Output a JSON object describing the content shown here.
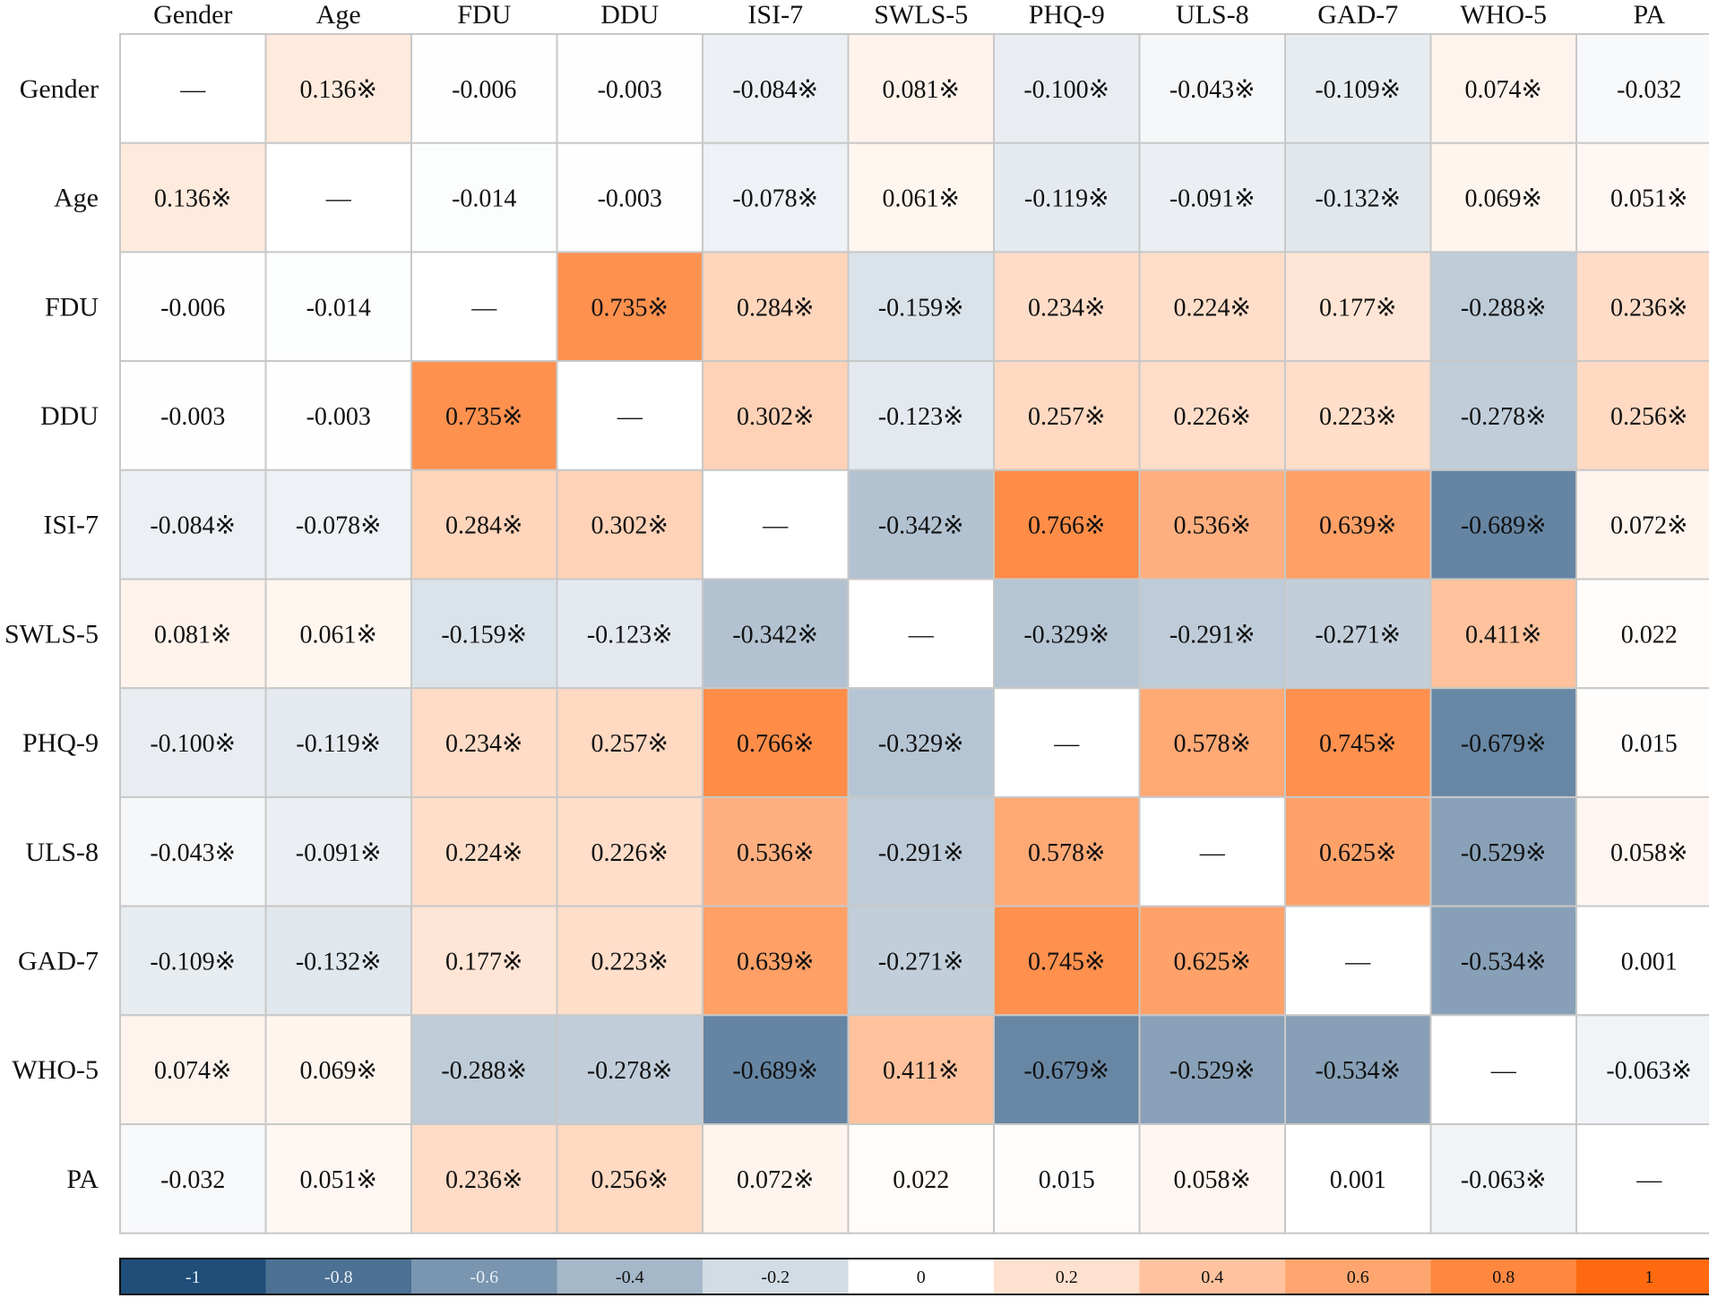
{
  "chart_data": {
    "type": "heatmap",
    "title": "",
    "xlabel": "",
    "ylabel": "",
    "variables": [
      "Gender",
      "Age",
      "FDU",
      "DDU",
      "ISI-7",
      "SWLS-5",
      "PHQ-9",
      "ULS-8",
      "GAD-7",
      "WHO-5",
      "PA"
    ],
    "diagonal_label": "—",
    "significance_mark": "※",
    "matrix": [
      [
        null,
        0.136,
        -0.006,
        -0.003,
        -0.084,
        0.081,
        -0.1,
        -0.043,
        -0.109,
        0.074,
        -0.032
      ],
      [
        0.136,
        null,
        -0.014,
        -0.003,
        -0.078,
        0.061,
        -0.119,
        -0.091,
        -0.132,
        0.069,
        0.051
      ],
      [
        -0.006,
        -0.014,
        null,
        0.735,
        0.284,
        -0.159,
        0.234,
        0.224,
        0.177,
        -0.288,
        0.236
      ],
      [
        -0.003,
        -0.003,
        0.735,
        null,
        0.302,
        -0.123,
        0.257,
        0.226,
        0.223,
        -0.278,
        0.256
      ],
      [
        -0.084,
        -0.078,
        0.284,
        0.302,
        null,
        -0.342,
        0.766,
        0.536,
        0.639,
        -0.689,
        0.072
      ],
      [
        0.081,
        0.061,
        -0.159,
        -0.123,
        -0.342,
        null,
        -0.329,
        -0.291,
        -0.271,
        0.411,
        0.022
      ],
      [
        -0.1,
        -0.119,
        0.234,
        0.257,
        0.766,
        -0.329,
        null,
        0.578,
        0.745,
        -0.679,
        0.015
      ],
      [
        -0.043,
        -0.091,
        0.224,
        0.226,
        0.536,
        -0.291,
        0.578,
        null,
        0.625,
        -0.529,
        0.058
      ],
      [
        -0.109,
        -0.132,
        0.177,
        0.223,
        0.639,
        -0.271,
        0.745,
        0.625,
        null,
        -0.534,
        0.001
      ],
      [
        0.074,
        0.069,
        -0.288,
        -0.278,
        -0.689,
        0.411,
        -0.679,
        -0.529,
        -0.534,
        null,
        -0.063
      ],
      [
        -0.032,
        0.051,
        0.236,
        0.256,
        0.072,
        0.022,
        0.015,
        0.058,
        0.001,
        -0.063,
        null
      ]
    ],
    "significant": [
      [
        false,
        true,
        false,
        false,
        true,
        true,
        true,
        true,
        true,
        true,
        false
      ],
      [
        true,
        false,
        false,
        false,
        true,
        true,
        true,
        true,
        true,
        true,
        true
      ],
      [
        false,
        false,
        false,
        true,
        true,
        true,
        true,
        true,
        true,
        true,
        true
      ],
      [
        false,
        false,
        true,
        false,
        true,
        true,
        true,
        true,
        true,
        true,
        true
      ],
      [
        true,
        true,
        true,
        true,
        false,
        true,
        true,
        true,
        true,
        true,
        true
      ],
      [
        true,
        true,
        true,
        true,
        true,
        false,
        true,
        true,
        true,
        true,
        false
      ],
      [
        true,
        true,
        true,
        true,
        true,
        true,
        false,
        true,
        true,
        true,
        false
      ],
      [
        true,
        true,
        true,
        true,
        true,
        true,
        true,
        false,
        true,
        true,
        true
      ],
      [
        true,
        true,
        true,
        true,
        true,
        true,
        true,
        true,
        false,
        true,
        false
      ],
      [
        true,
        true,
        true,
        true,
        true,
        true,
        true,
        true,
        true,
        false,
        true
      ],
      [
        false,
        true,
        true,
        true,
        true,
        false,
        false,
        true,
        false,
        true,
        false
      ]
    ],
    "colorbar": {
      "ticks": [
        "-1",
        "-0.8",
        "-0.6",
        "-0.4",
        "-0.2",
        "0",
        "0.2",
        "0.4",
        "0.6",
        "0.8",
        "1"
      ],
      "negative_color": "#1f4e79",
      "neutral_color": "#ffffff",
      "positive_color": "#ff6a10"
    },
    "value_range": [
      -1,
      1
    ],
    "grid_color": "#c8c8c8"
  }
}
